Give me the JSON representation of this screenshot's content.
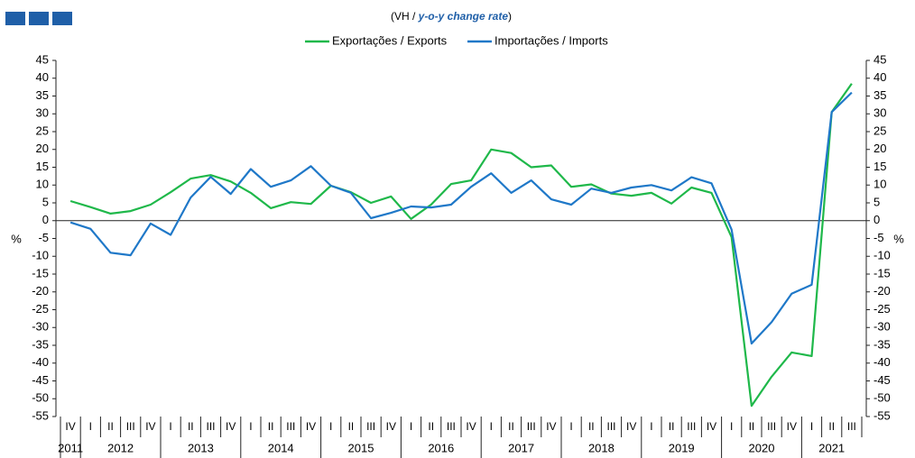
{
  "chart_data": {
    "type": "line",
    "subtitle": {
      "prefix": "(VH / ",
      "emphasis": "y-o-y change rate",
      "suffix": ")"
    },
    "ylabel": "%",
    "y2label": "%",
    "categories": [
      "IV",
      "I",
      "II",
      "III",
      "IV",
      "I",
      "II",
      "III",
      "IV",
      "I",
      "II",
      "III",
      "IV",
      "I",
      "II",
      "III",
      "IV",
      "I",
      "II",
      "III",
      "IV",
      "I",
      "II",
      "III",
      "IV",
      "I",
      "II",
      "III",
      "IV",
      "I",
      "II",
      "III",
      "IV",
      "I",
      "II",
      "III",
      "IV",
      "I",
      "II",
      "III"
    ],
    "x_groups": [
      "2011",
      "2012",
      "2013",
      "2014",
      "2015",
      "2016",
      "2017",
      "2018",
      "2019",
      "2020",
      "2021"
    ],
    "series": [
      {
        "name": "Exportações / Exports",
        "color": "#1fb84a",
        "values": [
          5.5,
          3.8,
          2,
          2.7,
          4.5,
          8,
          11.8,
          12.8,
          11,
          7.8,
          3.5,
          5.2,
          4.7,
          9.8,
          8,
          5,
          6.8,
          0.5,
          4.5,
          10.3,
          11.3,
          20,
          19,
          15,
          15.5,
          9.5,
          10.2,
          7.6,
          7,
          7.8,
          4.8,
          9.3,
          7.8,
          -4.6,
          -52,
          -43.8,
          -37,
          -38,
          30.5,
          38.5
        ]
      },
      {
        "name": "Importações / Imports",
        "color": "#1f78c8",
        "values": [
          -0.5,
          -2.3,
          -9,
          -9.7,
          -0.8,
          -4,
          6.5,
          12.3,
          7.5,
          14.5,
          9.5,
          11.3,
          15.3,
          9.8,
          7.8,
          0.7,
          2.2,
          4,
          3.7,
          4.5,
          9.5,
          13.3,
          7.8,
          11.3,
          6,
          4.5,
          9,
          7.8,
          9.3,
          10,
          8.5,
          12.2,
          10.5,
          -2.5,
          -34.5,
          -28.5,
          -20.5,
          -18,
          30.5,
          36
        ]
      }
    ],
    "ylim": [
      -55,
      45
    ],
    "yticks": [
      45,
      40,
      35,
      30,
      25,
      20,
      15,
      10,
      5,
      0,
      -5,
      -10,
      -15,
      -20,
      -25,
      -30,
      -35,
      -40,
      -45,
      -50,
      -55
    ],
    "y2lim": [
      -55,
      45
    ],
    "y2ticks": [
      45,
      40,
      35,
      30,
      25,
      20,
      15,
      10,
      5,
      0,
      -5,
      -10,
      -15,
      -20,
      -25,
      -30,
      -35,
      -40,
      -45,
      -50,
      -55
    ],
    "legend": "top"
  }
}
